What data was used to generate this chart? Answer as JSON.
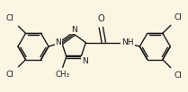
{
  "bg_color": "#fdf5e4",
  "line_color": "#1a1a1a",
  "text_color": "#1a1a1a",
  "lw": 1.0,
  "fs": 6.5,
  "figsize": [
    2.09,
    1.03
  ],
  "dpi": 100,
  "xlim": [
    0,
    209
  ],
  "ylim": [
    0,
    103
  ]
}
